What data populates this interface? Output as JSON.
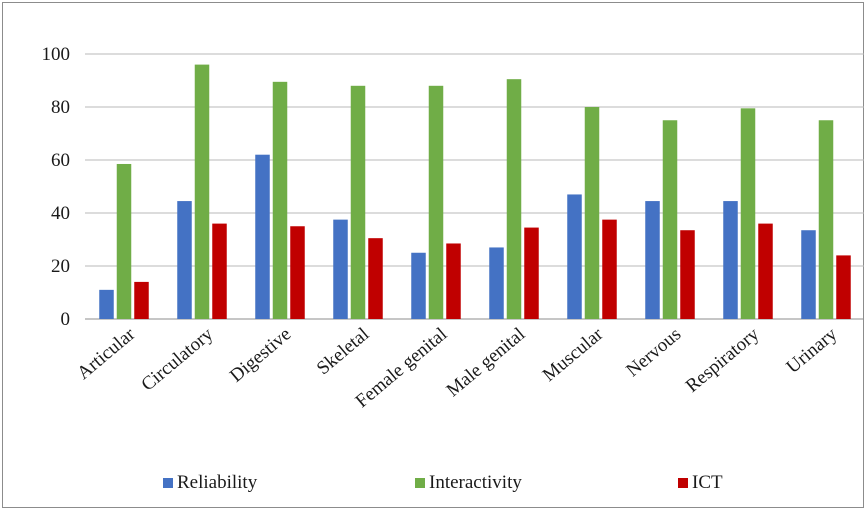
{
  "chart_data": {
    "type": "bar",
    "categories": [
      "Articular",
      "Circulatory",
      "Digestive",
      "Skeletal",
      "Female genital",
      "Male genital",
      "Muscular",
      "Nervous",
      "Respiratory",
      "Urinary"
    ],
    "series": [
      {
        "name": "Reliability",
        "color": "#4472c4",
        "values": [
          11,
          44.5,
          62,
          37.5,
          25,
          27,
          47,
          44.5,
          44.5,
          33.5
        ]
      },
      {
        "name": "Interactivity",
        "color": "#70ad47",
        "values": [
          58.5,
          96,
          89.5,
          88,
          88,
          90.5,
          80,
          75,
          79.5,
          75
        ]
      },
      {
        "name": "ICT",
        "color": "#c00000",
        "values": [
          14,
          36,
          35,
          30.5,
          28.5,
          34.5,
          37.5,
          33.5,
          36,
          24
        ]
      }
    ],
    "y_ticks": [
      "0",
      "20",
      "40",
      "60",
      "80",
      "100"
    ],
    "ylim": [
      0,
      100
    ],
    "grid": true,
    "legend_position": "bottom"
  }
}
